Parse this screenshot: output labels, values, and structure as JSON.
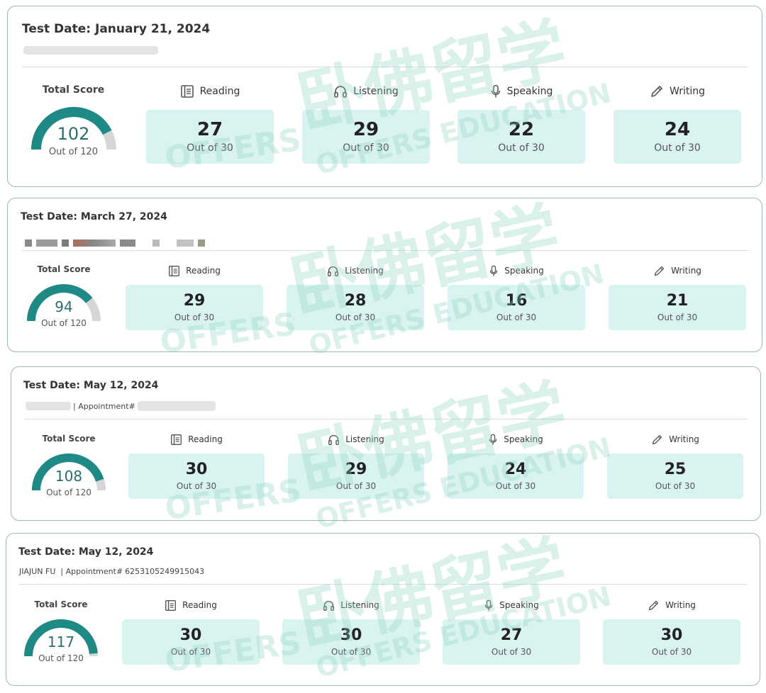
{
  "records": [
    {
      "date_label": "Test Date:",
      "date": "January 21, 2024",
      "candidate_name": "",
      "appointment_label": "",
      "appointment_number": "",
      "total": {
        "label": "Total Score",
        "value": "102",
        "out_of": "Out of 120",
        "fraction": 0.85
      },
      "sections": [
        {
          "name": "Reading",
          "score": "27",
          "out_of": "Out of 30",
          "icon": "book-icon"
        },
        {
          "name": "Listening",
          "score": "29",
          "out_of": "Out of 30",
          "icon": "headphones-icon"
        },
        {
          "name": "Speaking",
          "score": "22",
          "out_of": "Out of 30",
          "icon": "microphone-icon"
        },
        {
          "name": "Writing",
          "score": "24",
          "out_of": "Out of 30",
          "icon": "pencil-icon"
        }
      ]
    },
    {
      "date_label": "Test Date:",
      "date": "March 27, 2024",
      "candidate_name": "",
      "appointment_label": "",
      "appointment_number": "",
      "total": {
        "label": "Total Score",
        "value": "94",
        "out_of": "Out of 120",
        "fraction": 0.7833
      },
      "sections": [
        {
          "name": "Reading",
          "score": "29",
          "out_of": "Out of 30",
          "icon": "book-icon"
        },
        {
          "name": "Listening",
          "score": "28",
          "out_of": "Out of 30",
          "icon": "headphones-icon"
        },
        {
          "name": "Speaking",
          "score": "16",
          "out_of": "Out of 30",
          "icon": "microphone-icon"
        },
        {
          "name": "Writing",
          "score": "21",
          "out_of": "Out of 30",
          "icon": "pencil-icon"
        }
      ]
    },
    {
      "date_label": "Test Date:",
      "date": "May 12, 2024",
      "candidate_name": "",
      "appointment_label": "| Appointment#",
      "appointment_number": "",
      "total": {
        "label": "Total Score",
        "value": "108",
        "out_of": "Out of 120",
        "fraction": 0.9
      },
      "sections": [
        {
          "name": "Reading",
          "score": "30",
          "out_of": "Out of 30",
          "icon": "book-icon"
        },
        {
          "name": "Listening",
          "score": "29",
          "out_of": "Out of 30",
          "icon": "headphones-icon"
        },
        {
          "name": "Speaking",
          "score": "24",
          "out_of": "Out of 30",
          "icon": "microphone-icon"
        },
        {
          "name": "Writing",
          "score": "25",
          "out_of": "Out of 30",
          "icon": "pencil-icon"
        }
      ]
    },
    {
      "date_label": "Test Date:",
      "date": "May 12, 2024",
      "candidate_name": "JIAJUN FU",
      "appointment_label": "| Appointment#",
      "appointment_number": "6253105249915043",
      "total": {
        "label": "Total Score",
        "value": "117",
        "out_of": "Out of 120",
        "fraction": 0.975
      },
      "sections": [
        {
          "name": "Reading",
          "score": "30",
          "out_of": "Out of 30",
          "icon": "book-icon"
        },
        {
          "name": "Listening",
          "score": "30",
          "out_of": "Out of 30",
          "icon": "headphones-icon"
        },
        {
          "name": "Speaking",
          "score": "27",
          "out_of": "Out of 30",
          "icon": "microphone-icon"
        },
        {
          "name": "Writing",
          "score": "30",
          "out_of": "Out of 30",
          "icon": "pencil-icon"
        }
      ]
    }
  ],
  "watermark": {
    "cn": "卧佛留学",
    "en": "OFFERS EDUCATION",
    "short": "OFFERS"
  },
  "colors": {
    "gauge_fill": "#1f8a85",
    "gauge_track": "#d6d6d6",
    "box_bg": "#d9f3f0",
    "border": "#9cb8b8"
  }
}
